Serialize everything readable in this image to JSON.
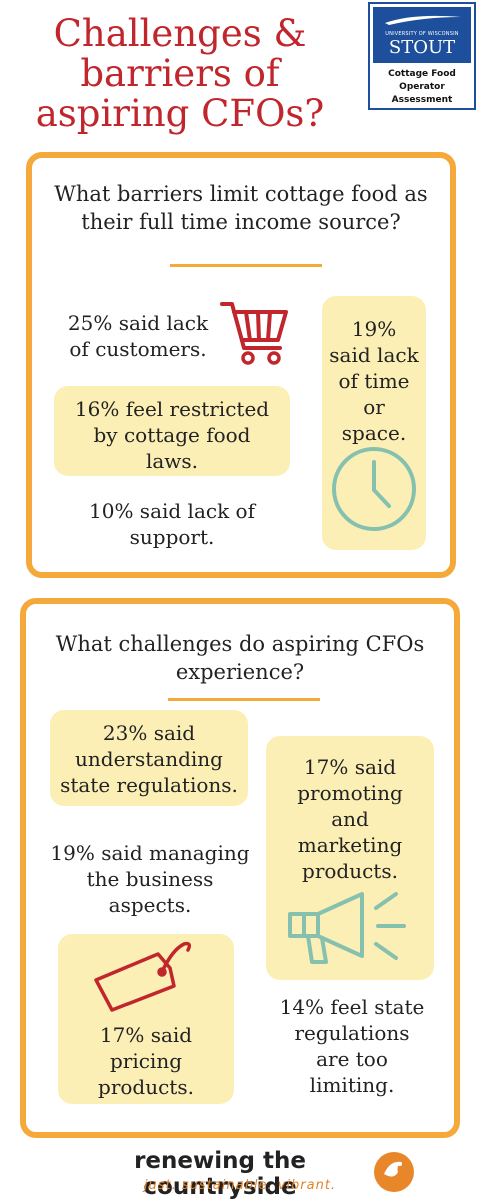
{
  "title": {
    "line1": "Challenges &",
    "line2": "barriers of",
    "line3": "aspiring CFOs?"
  },
  "logo": {
    "university": "UNIVERSITY OF WISCONSIN",
    "name": "STOUT",
    "subtitle_line1": "Cottage Food",
    "subtitle_line2": "Operator",
    "subtitle_line3": "Assessment"
  },
  "section1": {
    "question_line1": "What barriers limit cottage food as",
    "question_line2": "their full time income source?",
    "customers_line1": "25% said lack",
    "customers_line2": "of customers.",
    "time_line1": "19%",
    "time_line2": "said lack",
    "time_line3": "of time",
    "time_line4": "or",
    "time_line5": "space.",
    "laws_line1": "16% feel restricted",
    "laws_line2": "by cottage food",
    "laws_line3": "laws.",
    "support_line1": "10% said lack of",
    "support_line2": "support."
  },
  "section2": {
    "question_line1": "What challenges do aspiring CFOs",
    "question_line2": "experience?",
    "regs_line1": "23% said",
    "regs_line2": "understanding",
    "regs_line3": "state regulations.",
    "business_line1": "19% said managing",
    "business_line2": "the business",
    "business_line3": "aspects.",
    "marketing_line1": "17% said",
    "marketing_line2": "promoting",
    "marketing_line3": "and",
    "marketing_line4": "marketing",
    "marketing_line5": "products.",
    "pricing_line1": "17% said",
    "pricing_line2": "pricing",
    "pricing_line3": "products.",
    "limiting_line1": "14% feel state",
    "limiting_line2": "regulations",
    "limiting_line3": "are too",
    "limiting_line4": "limiting."
  },
  "footer": {
    "name": "renewing the countryside",
    "tagline": "just. sustainable. vibrant."
  },
  "icons": {
    "cart": "shopping-cart-icon",
    "clock": "clock-icon",
    "megaphone": "megaphone-icon",
    "tag": "price-tag-icon",
    "footer_logo": "bird-logo-icon"
  },
  "colors": {
    "title": "#c0262c",
    "panel_border": "#f4a93a",
    "bubble": "#fcefb5",
    "icon_red": "#c0262c",
    "icon_teal": "#86c1b0",
    "logo_blue": "#1d4f9c",
    "footer_orange": "#e4832a"
  }
}
